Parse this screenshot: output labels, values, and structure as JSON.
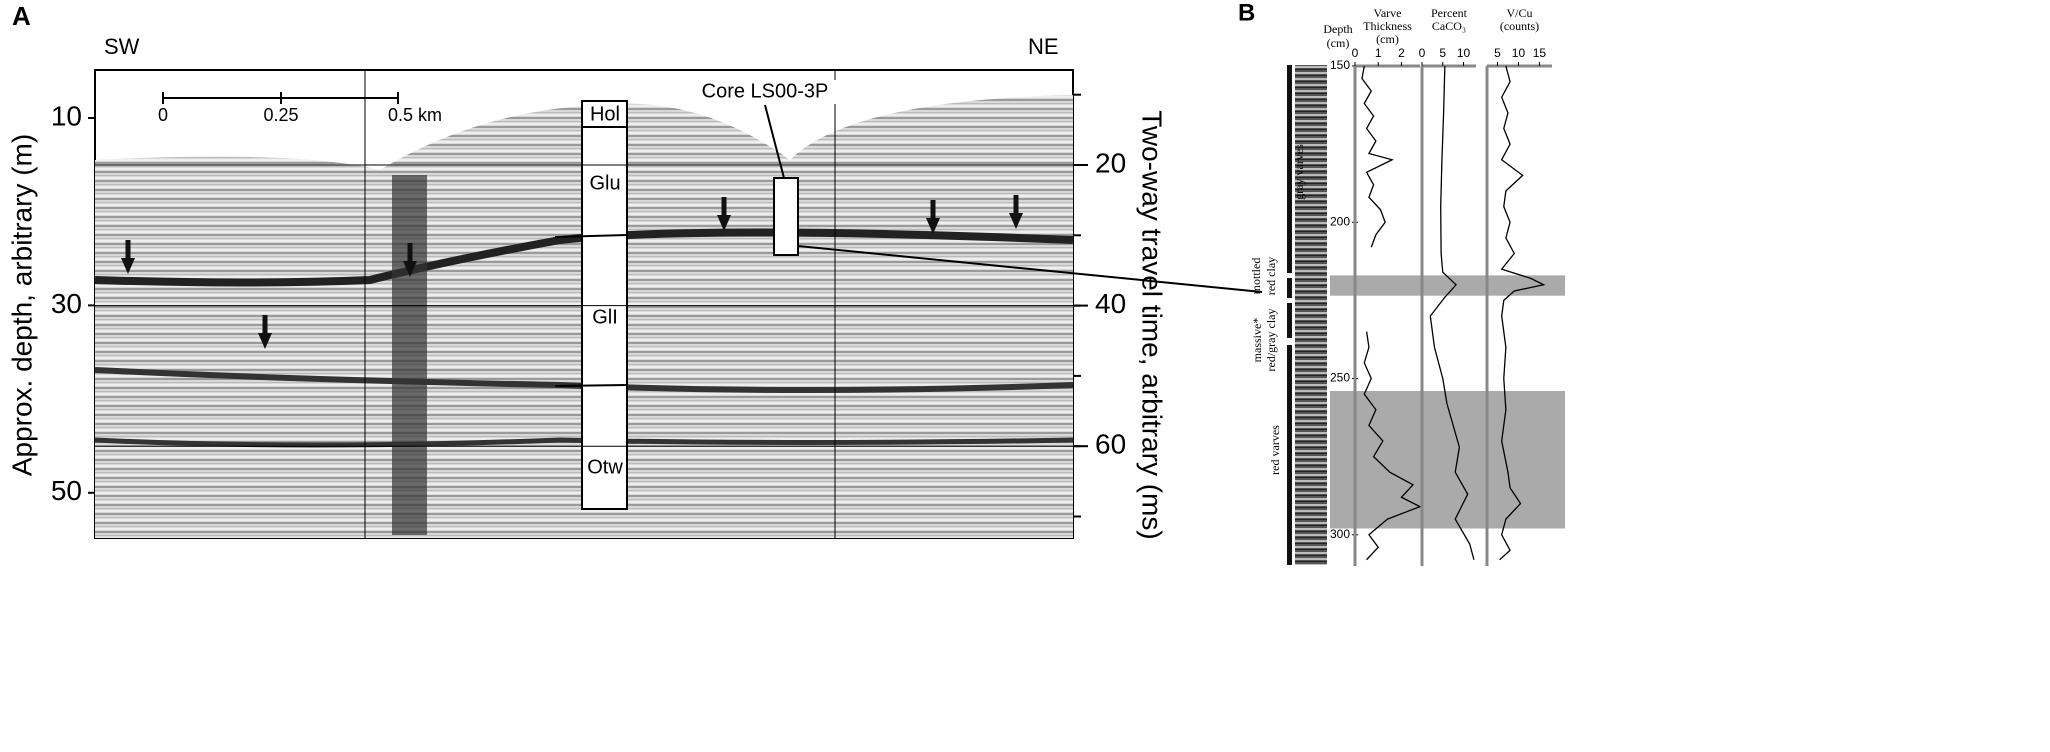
{
  "panel_a": {
    "label": "A",
    "left_direction": "SW",
    "right_direction": "NE",
    "left_axis": {
      "title": "Approx. depth, arbitrary (m)",
      "ticks": [
        10,
        30,
        50
      ]
    },
    "right_axis": {
      "title": "Two-way travel time, arbitrary (ms)",
      "ticks": [
        20,
        40,
        60
      ]
    },
    "scale_bar": [
      "0",
      "0.25",
      "0.5 km"
    ],
    "units": [
      "Hol",
      "Glu",
      "GlI",
      "Otw"
    ],
    "core_label": "Core LS00-3P"
  },
  "panel_b": {
    "label": "B",
    "depth": {
      "title": [
        "Depth",
        "(cm)"
      ],
      "ylim": [
        150,
        310
      ],
      "ticks": [
        150,
        200,
        250,
        300
      ]
    },
    "facies": [
      "gray varves",
      "mottled",
      "red clay",
      "massive*",
      "red/gray clay",
      "red varves"
    ],
    "varve": {
      "title": [
        "Varve",
        "Thickness",
        "(cm)"
      ],
      "xlim": [
        0,
        2.8
      ],
      "ticks": [
        0,
        1,
        2
      ],
      "depth": [
        150,
        154,
        158,
        162,
        166,
        170,
        174,
        178,
        180,
        184,
        188,
        192,
        196,
        200,
        204,
        208,
        222,
        235,
        240,
        245,
        250,
        255,
        260,
        265,
        270,
        275,
        280,
        284,
        288,
        291,
        295,
        300,
        304,
        308
      ],
      "values": [
        0.4,
        0.3,
        0.7,
        0.4,
        0.8,
        0.5,
        0.9,
        0.6,
        1.6,
        0.5,
        0.8,
        0.6,
        1.1,
        1.3,
        0.9,
        0.7,
        null,
        0.5,
        0.6,
        0.4,
        0.7,
        0.4,
        0.9,
        0.6,
        1.2,
        0.8,
        1.5,
        2.5,
        2.0,
        2.8,
        1.4,
        0.6,
        1.0,
        0.5
      ]
    },
    "caco3": {
      "title": [
        "Percent",
        "CaCO₃"
      ],
      "xlim": [
        0,
        13
      ],
      "ticks": [
        0,
        5,
        10
      ],
      "depth": [
        150,
        165,
        180,
        195,
        210,
        216,
        220,
        224,
        230,
        240,
        250,
        258,
        265,
        272,
        280,
        287,
        295,
        303,
        308
      ],
      "values": [
        5.5,
        5.2,
        4.8,
        4.5,
        4.6,
        5.0,
        8.2,
        5.5,
        2.0,
        3.0,
        5.0,
        6.0,
        7.5,
        9.0,
        8.0,
        11.0,
        8.0,
        11.5,
        12.5
      ]
    },
    "vcu": {
      "title": [
        "V/Cu",
        "(counts)"
      ],
      "xlim": [
        2.5,
        18
      ],
      "ticks": [
        5,
        10,
        15
      ],
      "depth": [
        150,
        155,
        160,
        165,
        170,
        175,
        180,
        185,
        190,
        195,
        200,
        205,
        210,
        215,
        218,
        220,
        222,
        225,
        230,
        240,
        250,
        260,
        270,
        280,
        285,
        290,
        295,
        300,
        305,
        308
      ],
      "values": [
        7,
        8,
        6,
        7.5,
        6.5,
        8,
        6,
        11,
        7,
        6.5,
        8,
        7,
        9,
        6,
        13,
        16,
        9,
        6.5,
        6,
        7,
        6.5,
        7,
        6,
        7.5,
        8,
        10.5,
        7,
        6,
        8,
        5.5
      ]
    }
  }
}
